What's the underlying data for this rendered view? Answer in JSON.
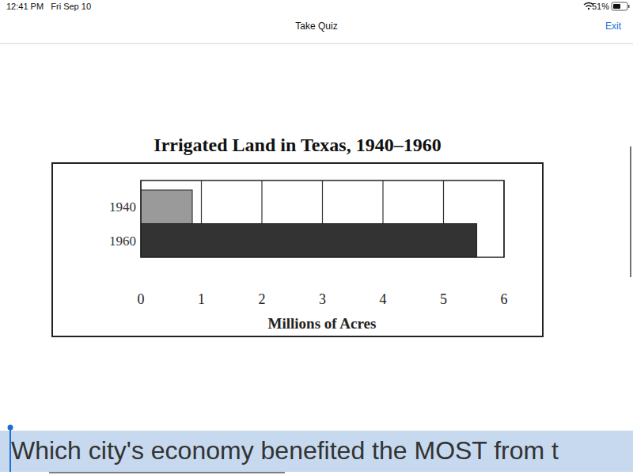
{
  "status_bar": {
    "time": "12:41 PM   Fri Sep 10",
    "battery": "51%"
  },
  "header": {
    "title": "Take Quiz",
    "exit": "Exit"
  },
  "chart_data": {
    "type": "bar",
    "orientation": "horizontal",
    "title": "Irrigated Land in Texas, 1940–1960",
    "x_label": "Millions of Acres",
    "categories": [
      "1940",
      "1960"
    ],
    "values": [
      0.85,
      5.55
    ],
    "colors": [
      "#9a9a9a",
      "#333333"
    ],
    "xlim": [
      0,
      6
    ],
    "xticks": [
      0,
      1,
      2,
      3,
      4,
      5,
      6
    ],
    "grid": true
  },
  "question": {
    "text": "Which city's economy benefited the MOST from t"
  }
}
